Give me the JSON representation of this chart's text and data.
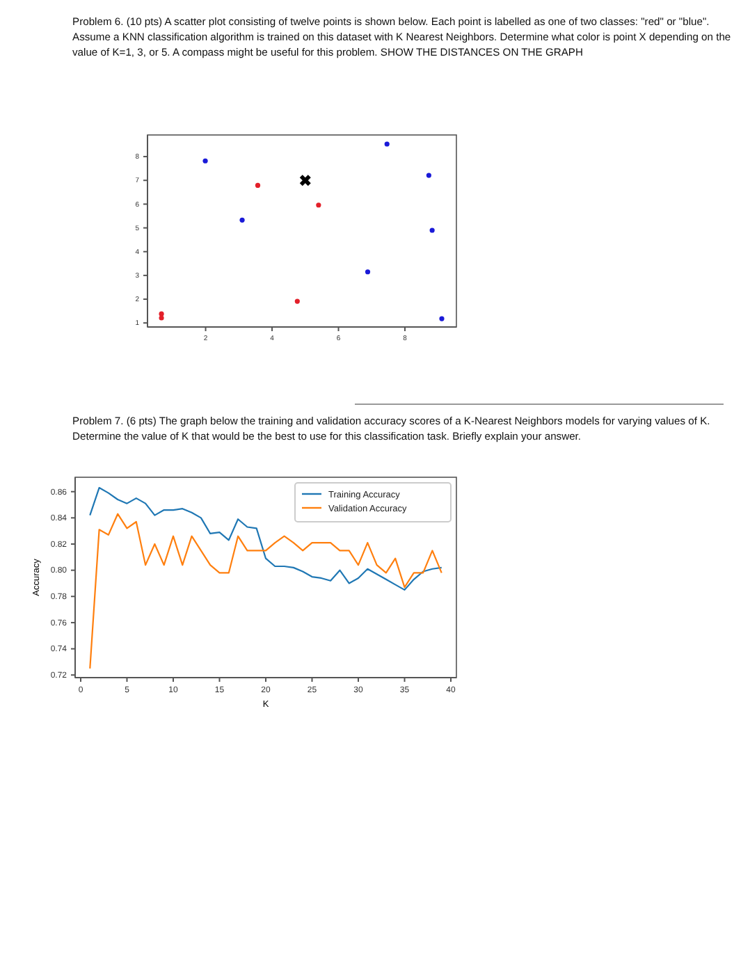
{
  "chart_data": [
    {
      "type": "scatter",
      "title": "Problem 6. (10 pts) A scatter plot consisting of twelve points is shown below. Each point is labelled as one of two classes: \"red\" or \"blue\". Assume a KNN classification algorithm is trained on this dataset with K Nearest Neighbors. Determine what color is point X depending on the value of K=1, 3, or 5. A compass might be useful for this problem. SHOW THE DISTANCES ON THE GRAPH",
      "marker": "circle",
      "legend": false,
      "grid": false,
      "xlim": [
        0.25,
        9.55
      ],
      "ylim": [
        0.83,
        8.91
      ],
      "xticks": [
        2,
        4,
        6,
        8
      ],
      "yticks": [
        1,
        2,
        3,
        4,
        5,
        6,
        7,
        8
      ],
      "series": [
        {
          "color": "#e3202a",
          "x": [
            3.57,
            5.4,
            4.76,
            0.67,
            0.67
          ],
          "values": [
            6.79,
            5.96,
            1.91,
            1.38,
            1.21
          ]
        },
        {
          "color": "#1a1ad8",
          "x": [
            1.99,
            3.1,
            7.46,
            8.72,
            8.82,
            6.88,
            9.11
          ],
          "values": [
            7.82,
            5.33,
            8.53,
            7.21,
            4.9,
            3.15,
            1.18
          ]
        },
        {
          "color": "#000000",
          "marker": "cross",
          "x": [
            5.0
          ],
          "values": [
            7.0
          ]
        }
      ]
    },
    {
      "type": "line",
      "title": "Problem 7. (6 pts) The graph below the training and validation accuracy scores of a K-Nearest Neighbors models for varying values of K. Determine the value of K that would be the best to use for this classification task. Briefly explain your answer.",
      "xlabel": "K",
      "ylabel": "Accuracy",
      "legend": "top right",
      "grid": false,
      "xlim": [
        -0.6,
        40.6
      ],
      "ylim": [
        0.718,
        0.871
      ],
      "xticks": [
        0,
        5,
        10,
        15,
        20,
        25,
        30,
        35,
        40
      ],
      "yticks": [
        {
          "value": 0.72,
          "label": "0.72"
        },
        {
          "value": 0.74,
          "label": "0.74"
        },
        {
          "value": 0.76,
          "label": "0.76"
        },
        {
          "value": 0.78,
          "label": "0.78"
        },
        {
          "value": 0.8,
          "label": "0.80"
        },
        {
          "value": 0.82,
          "label": "0.82"
        },
        {
          "value": 0.84,
          "label": "0.84"
        },
        {
          "value": 0.86,
          "label": "0.86"
        }
      ],
      "x": [
        1,
        2,
        3,
        4,
        5,
        6,
        7,
        8,
        9,
        10,
        11,
        12,
        13,
        14,
        15,
        16,
        17,
        18,
        19,
        20,
        21,
        22,
        23,
        24,
        25,
        26,
        27,
        28,
        29,
        30,
        31,
        32,
        33,
        34,
        35,
        36,
        37,
        38,
        39
      ],
      "series": [
        {
          "name": "Training Accuracy",
          "color": "#1f77b4",
          "values": [
            0.842,
            0.863,
            0.859,
            0.854,
            0.851,
            0.855,
            0.851,
            0.842,
            0.846,
            0.846,
            0.847,
            0.844,
            0.84,
            0.828,
            0.829,
            0.823,
            0.839,
            0.833,
            0.832,
            0.809,
            0.803,
            0.803,
            0.802,
            0.799,
            0.795,
            0.794,
            0.792,
            0.8,
            0.79,
            0.794,
            0.801,
            0.797,
            0.793,
            0.789,
            0.785,
            0.793,
            0.799,
            0.801,
            0.802
          ]
        },
        {
          "name": "Validation Accuracy",
          "color": "#ff7f0e",
          "values": [
            0.725,
            0.831,
            0.827,
            0.843,
            0.832,
            0.837,
            0.804,
            0.82,
            0.804,
            0.826,
            0.804,
            0.826,
            0.815,
            0.804,
            0.798,
            0.798,
            0.826,
            0.815,
            0.815,
            0.815,
            0.821,
            0.826,
            0.821,
            0.815,
            0.821,
            0.821,
            0.821,
            0.815,
            0.815,
            0.804,
            0.821,
            0.804,
            0.798,
            0.809,
            0.787,
            0.798,
            0.798,
            0.815,
            0.798
          ]
        }
      ]
    }
  ]
}
